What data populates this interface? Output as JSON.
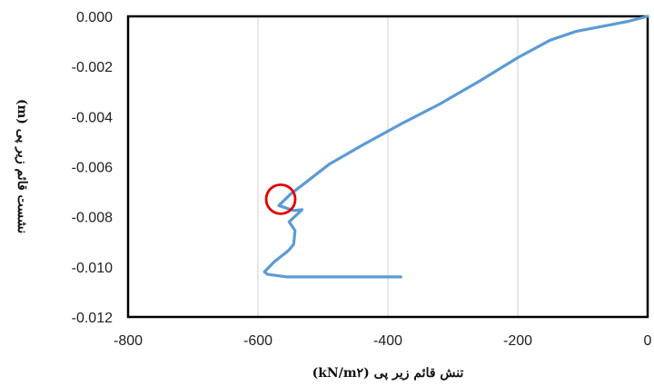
{
  "chart_data": {
    "type": "line",
    "xlabel": "تنش قائم زیر پی (kN/m۲)",
    "ylabel": "نشست قائم زیر پی (m)",
    "xlim": [
      -800,
      0
    ],
    "ylim": [
      -0.012,
      0.0
    ],
    "x_ticks": [
      "-800",
      "-600",
      "-400",
      "-200",
      "0"
    ],
    "y_ticks": [
      "0.000",
      "-0.002",
      "-0.004",
      "-0.006",
      "-0.008",
      "-0.010",
      "-0.012"
    ],
    "grid": "vertical",
    "legend": "none",
    "series": [
      {
        "color": "#5b9bd5",
        "points": [
          [
            0,
            0.0
          ],
          [
            -30,
            -0.0002
          ],
          [
            -60,
            -0.00035
          ],
          [
            -90,
            -0.0005
          ],
          [
            -110,
            -0.0006
          ],
          [
            -150,
            -0.00095
          ],
          [
            -200,
            -0.00165
          ],
          [
            -260,
            -0.0026
          ],
          [
            -320,
            -0.0035
          ],
          [
            -380,
            -0.0043
          ],
          [
            -440,
            -0.00515
          ],
          [
            -490,
            -0.0059
          ],
          [
            -530,
            -0.0067
          ],
          [
            -550,
            -0.0071
          ],
          [
            -568,
            -0.00755
          ],
          [
            -545,
            -0.00775
          ],
          [
            -532,
            -0.00772
          ],
          [
            -552,
            -0.0082
          ],
          [
            -543,
            -0.00855
          ],
          [
            -545,
            -0.0091
          ],
          [
            -553,
            -0.00935
          ],
          [
            -575,
            -0.0098
          ],
          [
            -590,
            -0.0102
          ],
          [
            -585,
            -0.0103
          ],
          [
            -555,
            -0.0104
          ],
          [
            -500,
            -0.0104
          ],
          [
            -440,
            -0.0104
          ],
          [
            -380,
            -0.0104
          ]
        ]
      }
    ],
    "annotations": [
      {
        "type": "circle",
        "x": -565,
        "y": -0.0073,
        "color": "#e00000"
      }
    ]
  }
}
